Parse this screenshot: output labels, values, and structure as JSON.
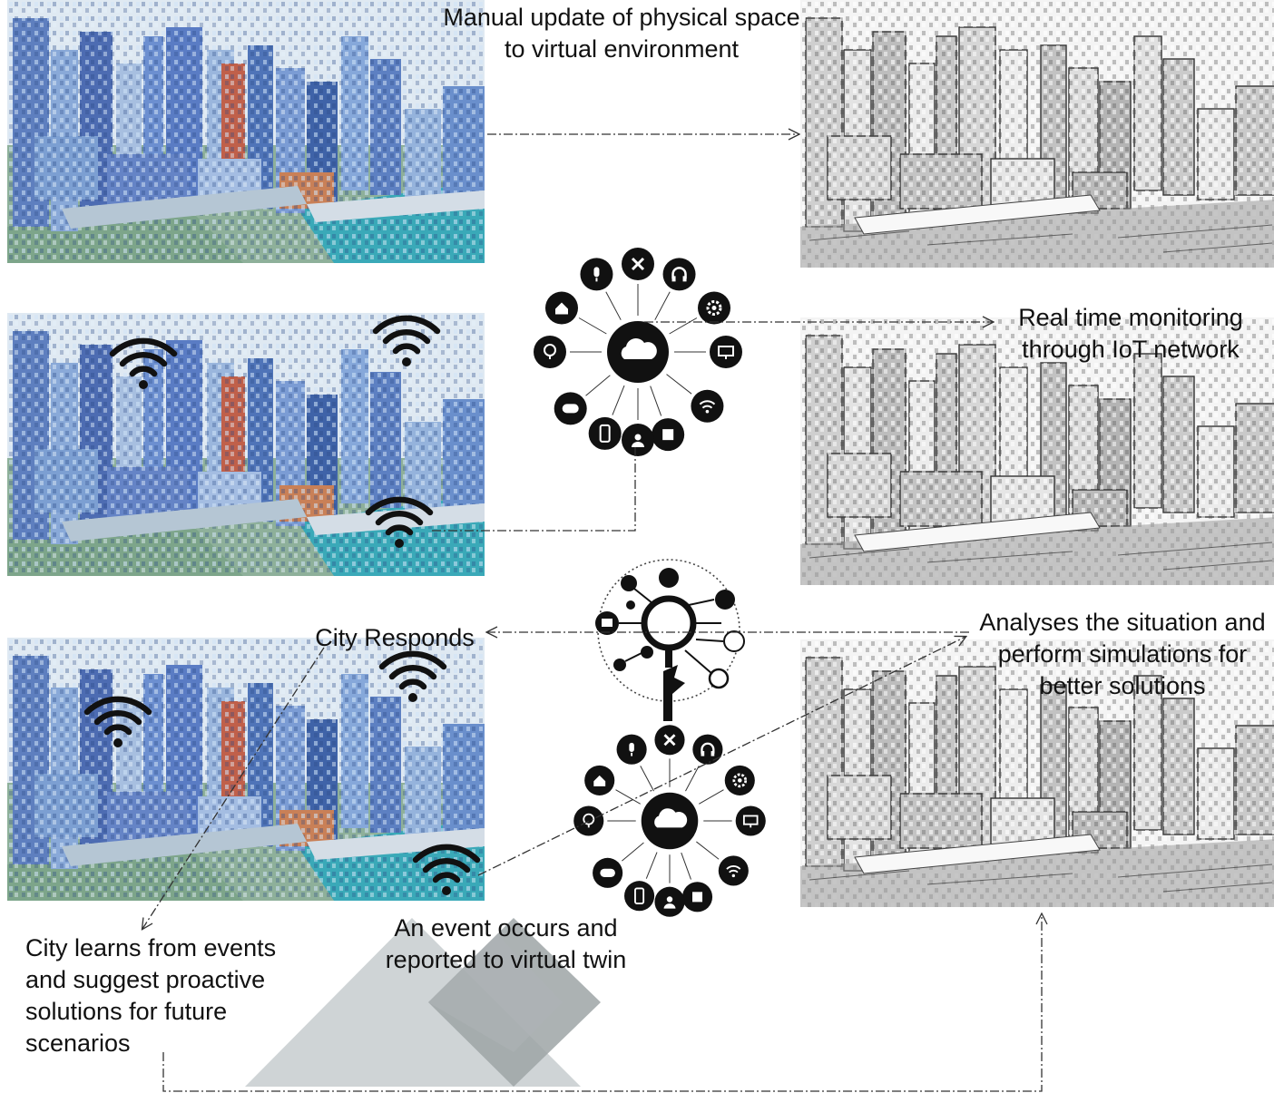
{
  "labels": {
    "manual_update": [
      "Manual update of physical space",
      "to virtual environment"
    ],
    "realtime": [
      "Real time monitoring",
      "through IoT network"
    ],
    "city_responds": [
      "City Responds"
    ],
    "analyses": [
      "Analyses the situation and",
      "perform simulations for",
      "better solutions"
    ],
    "city_learns": [
      "City learns from events",
      "and suggest proactive",
      "solutions for future",
      "scenarios"
    ],
    "event_occurs": [
      "An event occurs and",
      "reported to virtual twin"
    ]
  },
  "colors": {
    "physical_city": "#6f8fc4",
    "virtual_city": "#d9d9d9",
    "hub_icon": "#111111",
    "connector": "#333333",
    "watermark_light": "#cfd4d6",
    "watermark_dark": "#9ea4a6"
  },
  "icons": {
    "iot_hub": [
      "home-icon",
      "microphone-icon",
      "tools-icon",
      "headphones-icon",
      "gear-icon",
      "monitor-icon",
      "wifi-icon",
      "chip-icon",
      "user-icon",
      "phone-icon",
      "gamepad-icon",
      "lightbulb-icon"
    ],
    "center": "cloud-icon",
    "analytics": "analytics-icon",
    "signal": "wifi-signal-icon"
  }
}
